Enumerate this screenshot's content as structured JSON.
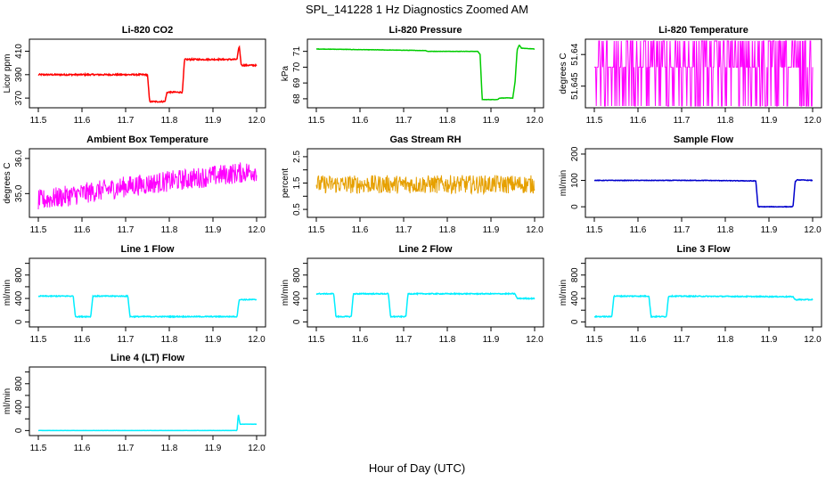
{
  "page": {
    "title": "SPL_141228  1 Hz Diagnostics Zoomed AM",
    "xlabel": "Hour of Day (UTC)"
  },
  "chart_data": [
    {
      "type": "line",
      "title": "Li-820 CO2",
      "xlabel": "",
      "ylabel": "Licor ppm",
      "xlim": [
        11.5,
        12.0
      ],
      "ylim": [
        364,
        418
      ],
      "yticks": [
        370,
        390,
        410
      ],
      "yticklabels": [
        "370",
        "390",
        "410"
      ],
      "color": "#ff0000",
      "noise": 0.6,
      "series": [
        {
          "x": [
            11.5,
            11.75,
            11.755,
            11.79,
            11.795,
            11.83,
            11.835,
            11.955,
            11.96,
            11.965,
            12.0
          ],
          "y": [
            390,
            390,
            367,
            367,
            375,
            375,
            403,
            403,
            415,
            398,
            398
          ]
        }
      ]
    },
    {
      "type": "line",
      "title": "Li-820 Pressure",
      "xlabel": "",
      "ylabel": "kPa",
      "xlim": [
        11.5,
        12.0
      ],
      "ylim": [
        67.6,
        71.6
      ],
      "yticks": [
        68,
        69,
        70,
        71
      ],
      "yticklabels": [
        "68",
        "69",
        "70",
        "71"
      ],
      "color": "#00cc00",
      "noise": 0.01,
      "series": [
        {
          "x": [
            11.5,
            11.75,
            11.755,
            11.87,
            11.875,
            11.88,
            11.915,
            11.92,
            11.95,
            11.955,
            11.96,
            11.965,
            11.97,
            12.0
          ],
          "y": [
            71.15,
            71.05,
            71.0,
            71.0,
            70.8,
            67.95,
            67.95,
            68.05,
            68.05,
            69.0,
            71.1,
            71.4,
            71.2,
            71.15
          ]
        }
      ]
    },
    {
      "type": "line",
      "title": "Li-820 Temperature",
      "xlabel": "",
      "ylabel": "degrees C",
      "xlim": [
        11.5,
        12.0
      ],
      "ylim": [
        51.648,
        51.638
      ],
      "yticks": [
        51.645,
        51.64
      ],
      "yticklabels": [
        "51.645",
        "51.64"
      ],
      "color": "#ff00ff",
      "noise": 0,
      "series": [
        {
          "x": [
            11.5,
            12.0
          ],
          "y": [
            51.637,
            51.651
          ]
        }
      ]
    },
    {
      "type": "line",
      "title": "Ambient Box Temperature",
      "xlabel": "",
      "ylabel": "degrees C",
      "xlim": [
        11.5,
        12.0
      ],
      "ylim": [
        34.4,
        36.2
      ],
      "yticks": [
        35.0,
        36.0
      ],
      "yticklabels": [
        "35.0",
        "36.0"
      ],
      "color": "#ff00ff",
      "noise": 0.3,
      "series": [
        {
          "x": [
            11.5,
            11.6,
            11.7,
            11.8,
            11.9,
            12.0
          ],
          "y": [
            34.8,
            35.0,
            35.2,
            35.35,
            35.5,
            35.65
          ]
        }
      ]
    },
    {
      "type": "line",
      "title": "Gas Stream RH",
      "xlabel": "",
      "ylabel": "percent",
      "xlim": [
        11.5,
        12.0
      ],
      "ylim": [
        0.3,
        2.7
      ],
      "yticks": [
        0.5,
        1.0,
        1.5,
        2.0,
        2.5
      ],
      "yticklabels": [
        "0.5",
        "1.5",
        "2.5"
      ],
      "color": "#e6a000",
      "noise": 0.35,
      "series": [
        {
          "x": [
            11.5,
            12.0
          ],
          "y": [
            1.45,
            1.45
          ]
        }
      ]
    },
    {
      "type": "line",
      "title": "Sample Flow",
      "xlabel": "",
      "ylabel": "ml/min",
      "xlim": [
        11.5,
        12.0
      ],
      "ylim": [
        -30,
        210
      ],
      "yticks": [
        0,
        100,
        200
      ],
      "yticklabels": [
        "0",
        "100",
        "200"
      ],
      "color": "#0000cc",
      "noise": 1,
      "series": [
        {
          "x": [
            11.5,
            11.75,
            11.87,
            11.875,
            11.955,
            11.96,
            11.965,
            12.0
          ],
          "y": [
            100,
            100,
            98,
            0,
            0,
            95,
            102,
            100
          ]
        }
      ]
    },
    {
      "type": "line",
      "title": "Line 1 Flow",
      "xlabel": "",
      "ylabel": "ml/min",
      "xlim": [
        11.5,
        12.0
      ],
      "ylim": [
        -40,
        1040
      ],
      "yticks": [
        0,
        200,
        400,
        600,
        800,
        1000
      ],
      "yticklabels": [
        "0",
        "400",
        "800"
      ],
      "color": "#00eeff",
      "noise": 8,
      "series": [
        {
          "x": [
            11.5,
            11.58,
            11.585,
            11.62,
            11.625,
            11.705,
            11.71,
            11.955,
            11.96,
            12.0
          ],
          "y": [
            440,
            440,
            90,
            90,
            440,
            440,
            90,
            90,
            380,
            380
          ]
        }
      ]
    },
    {
      "type": "line",
      "title": "Line 2 Flow",
      "xlabel": "",
      "ylabel": "ml/min",
      "xlim": [
        11.5,
        12.0
      ],
      "ylim": [
        -40,
        1040
      ],
      "yticks": [
        0,
        200,
        400,
        600,
        800,
        1000
      ],
      "yticklabels": [
        "0",
        "400",
        "800"
      ],
      "color": "#00eeff",
      "noise": 8,
      "series": [
        {
          "x": [
            11.5,
            11.54,
            11.545,
            11.58,
            11.585,
            11.665,
            11.67,
            11.705,
            11.71,
            11.955,
            11.96,
            12.0
          ],
          "y": [
            480,
            480,
            90,
            90,
            480,
            480,
            90,
            90,
            480,
            480,
            400,
            400
          ]
        }
      ]
    },
    {
      "type": "line",
      "title": "Line 3 Flow",
      "xlabel": "",
      "ylabel": "ml/min",
      "xlim": [
        11.5,
        12.0
      ],
      "ylim": [
        -40,
        1040
      ],
      "yticks": [
        0,
        200,
        400,
        600,
        800,
        1000
      ],
      "yticklabels": [
        "0",
        "400",
        "800"
      ],
      "color": "#00eeff",
      "noise": 8,
      "series": [
        {
          "x": [
            11.5,
            11.54,
            11.545,
            11.625,
            11.63,
            11.665,
            11.67,
            11.955,
            11.96,
            12.0
          ],
          "y": [
            90,
            90,
            440,
            440,
            90,
            90,
            440,
            430,
            380,
            380
          ]
        }
      ]
    },
    {
      "type": "line",
      "title": "Line 4 (LT) Flow",
      "xlabel": "",
      "ylabel": "ml/min",
      "xlim": [
        11.5,
        12.0
      ],
      "ylim": [
        -40,
        1040
      ],
      "yticks": [
        0,
        200,
        400,
        600,
        800,
        1000
      ],
      "yticklabels": [
        "0",
        "400",
        "800"
      ],
      "color": "#00eeff",
      "noise": 1,
      "series": [
        {
          "x": [
            11.5,
            11.955,
            11.958,
            11.962,
            11.965,
            12.0
          ],
          "y": [
            0,
            0,
            280,
            110,
            110,
            110
          ]
        }
      ]
    }
  ],
  "xaxis": {
    "ticks": [
      11.5,
      11.6,
      11.7,
      11.8,
      11.9,
      12.0
    ],
    "ticklabels": [
      "11.5",
      "11.6",
      "11.7",
      "11.8",
      "11.9",
      "12.0"
    ]
  }
}
